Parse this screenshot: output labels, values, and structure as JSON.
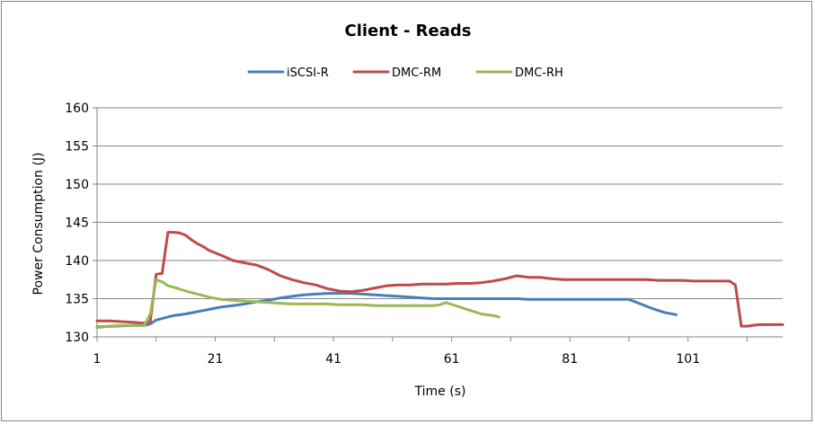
{
  "chart_data": {
    "type": "line",
    "title": "Client - Reads",
    "xlabel": "Time (s)",
    "ylabel": "Power Consumption (J)",
    "xlim": [
      1,
      117
    ],
    "ylim": [
      130,
      160
    ],
    "x_ticks": [
      1,
      21,
      41,
      61,
      81,
      101
    ],
    "y_ticks": [
      130,
      135,
      140,
      145,
      150,
      155,
      160
    ],
    "grid": "horizontal",
    "legend": "top",
    "series": [
      {
        "name": "iSCSI-R",
        "color": "#4a7ebb",
        "x": [
          1,
          4,
          7,
          9,
          10,
          11,
          12,
          14,
          16,
          18,
          20,
          22,
          24,
          26,
          28,
          30,
          32,
          34,
          36,
          38,
          40,
          42,
          44,
          46,
          48,
          50,
          52,
          54,
          56,
          58,
          60,
          62,
          64,
          66,
          68,
          70,
          72,
          74,
          76,
          78,
          80,
          82,
          84,
          86,
          88,
          90,
          91,
          93,
          95,
          97,
          99
        ],
        "y": [
          131.3,
          131.4,
          131.5,
          131.5,
          131.7,
          132.2,
          132.4,
          132.8,
          133.0,
          133.3,
          133.6,
          133.9,
          134.1,
          134.3,
          134.6,
          134.8,
          135.1,
          135.3,
          135.5,
          135.6,
          135.7,
          135.7,
          135.7,
          135.6,
          135.5,
          135.4,
          135.3,
          135.2,
          135.1,
          135.0,
          135.0,
          135.0,
          135.0,
          135.0,
          135.0,
          135.0,
          135.0,
          134.9,
          134.9,
          134.9,
          134.9,
          134.9,
          134.9,
          134.9,
          134.9,
          134.9,
          134.9,
          134.3,
          133.7,
          133.2,
          132.9
        ]
      },
      {
        "name": "DMC-RM",
        "color": "#be4b48",
        "x": [
          1,
          3,
          5,
          7,
          9,
          10,
          11,
          12,
          13,
          14,
          15,
          16,
          17,
          18,
          19,
          20,
          22,
          24,
          26,
          28,
          30,
          32,
          34,
          36,
          38,
          40,
          42,
          44,
          46,
          48,
          50,
          52,
          54,
          56,
          58,
          60,
          62,
          64,
          66,
          68,
          70,
          72,
          74,
          76,
          78,
          80,
          82,
          84,
          86,
          88,
          90,
          92,
          94,
          96,
          98,
          100,
          102,
          104,
          106,
          108,
          109,
          110,
          111,
          113,
          115,
          117
        ],
        "y": [
          132.1,
          132.1,
          132.0,
          131.9,
          131.8,
          132.0,
          138.2,
          138.3,
          143.7,
          143.7,
          143.6,
          143.3,
          142.7,
          142.2,
          141.8,
          141.3,
          140.7,
          140.0,
          139.7,
          139.4,
          138.8,
          138.0,
          137.5,
          137.1,
          136.8,
          136.3,
          136.0,
          135.9,
          136.1,
          136.4,
          136.7,
          136.8,
          136.8,
          136.9,
          136.9,
          136.9,
          137.0,
          137.0,
          137.1,
          137.3,
          137.6,
          138.0,
          137.8,
          137.8,
          137.6,
          137.5,
          137.5,
          137.5,
          137.5,
          137.5,
          137.5,
          137.5,
          137.5,
          137.4,
          137.4,
          137.4,
          137.3,
          137.3,
          137.3,
          137.3,
          136.8,
          131.4,
          131.4,
          131.6,
          131.6,
          131.6
        ]
      },
      {
        "name": "DMC-RH",
        "color": "#98b954",
        "x": [
          1,
          3,
          5,
          7,
          9,
          10,
          11,
          12,
          13,
          14,
          16,
          18,
          20,
          22,
          24,
          26,
          28,
          30,
          32,
          34,
          36,
          38,
          40,
          42,
          44,
          46,
          48,
          50,
          52,
          54,
          56,
          58,
          59,
          60,
          62,
          64,
          66,
          68,
          69
        ],
        "y": [
          131.2,
          131.4,
          131.5,
          131.5,
          131.5,
          133.0,
          137.5,
          137.2,
          136.7,
          136.5,
          136.0,
          135.6,
          135.2,
          134.9,
          134.8,
          134.7,
          134.6,
          134.5,
          134.4,
          134.3,
          134.3,
          134.3,
          134.3,
          134.2,
          134.2,
          134.2,
          134.1,
          134.1,
          134.1,
          134.1,
          134.1,
          134.1,
          134.2,
          134.5,
          134.0,
          133.5,
          133.0,
          132.8,
          132.6
        ]
      }
    ]
  }
}
